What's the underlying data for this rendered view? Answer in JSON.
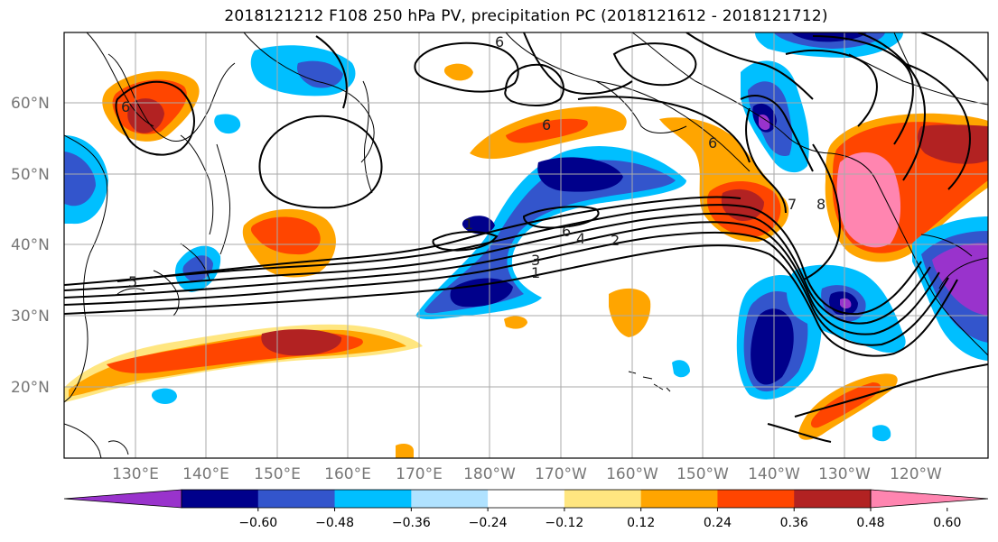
{
  "title": "2018121212 F108 250 hPa PV, precipitation PC (2018121612 - 2018121712)",
  "latitude_labels": [
    "60°N",
    "50°N",
    "40°N",
    "30°N",
    "20°N"
  ],
  "longitude_labels": [
    "130°E",
    "140°E",
    "150°E",
    "160°E",
    "170°E",
    "180°W",
    "170°W",
    "160°W",
    "150°W",
    "140°W",
    "130°W",
    "120°W"
  ],
  "colorbar": {
    "tick_labels": [
      "−0.60",
      "−0.48",
      "−0.36",
      "−0.24",
      "−0.12",
      "0.12",
      "0.24",
      "0.36",
      "0.48",
      "0.60"
    ],
    "colors": [
      "#9933cc",
      "#00008b",
      "#3355cc",
      "#00bfff",
      "#b0e2ff",
      "#ffffff",
      "#ffe680",
      "#ffa500",
      "#ff4500",
      "#b22222",
      "#ff85b0"
    ]
  },
  "contour_labels": [
    "6",
    "6",
    "6",
    "6",
    "4",
    "2",
    "3",
    "1",
    "5",
    "6",
    "7",
    "8",
    "1"
  ]
}
